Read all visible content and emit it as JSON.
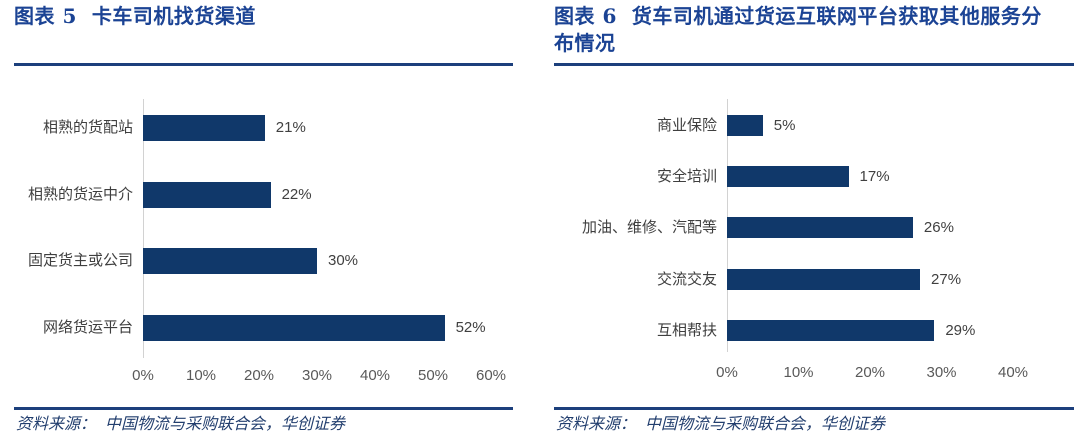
{
  "colors": {
    "title_blue": "#1b4394",
    "rule_blue": "#1c3f7c",
    "bar_navy": "#10386a",
    "axis_gray": "#d2d2d2",
    "category_label_gray": "#3f3f3f",
    "value_label_gray": "#404040",
    "tick_gray": "#595959",
    "source_blue": "#223e6e",
    "background": "#ffffff"
  },
  "figures": [
    {
      "label": "图表 5",
      "title": "卡车司机找货渠道",
      "source_prefix": "资料来源：",
      "source_text": "中国物流与采购联合会，华创证券"
    },
    {
      "label": "图表 6",
      "title": "货车司机通过货运互联网平台获取其他服务分布情况",
      "source_prefix": "资料来源：",
      "source_text": "中国物流与采购联合会，华创证券"
    }
  ],
  "chart_data": [
    {
      "type": "bar",
      "orientation": "horizontal",
      "title": "图表 5 卡车司机找货渠道",
      "categories": [
        "相熟的货配站",
        "相熟的货运中介",
        "固定货主或公司",
        "网络货运平台"
      ],
      "values": [
        21,
        22,
        30,
        52
      ],
      "value_labels": [
        "21%",
        "22%",
        "30%",
        "52%"
      ],
      "x_ticks": [
        0,
        10,
        20,
        30,
        40,
        50,
        60
      ],
      "x_tick_labels": [
        "0%",
        "10%",
        "20%",
        "30%",
        "40%",
        "50%",
        "60%"
      ],
      "xlim": [
        0,
        60
      ],
      "xlabel": "",
      "ylabel": "",
      "grid": false,
      "legend": false,
      "bar_color": "#10386a"
    },
    {
      "type": "bar",
      "orientation": "horizontal",
      "title": "图表 6 货车司机通过货运互联网平台获取其他服务分布情况",
      "categories": [
        "商业保险",
        "安全培训",
        "加油、维修、汽配等",
        "交流交友",
        "互相帮扶"
      ],
      "values": [
        5,
        17,
        26,
        27,
        29
      ],
      "value_labels": [
        "5%",
        "17%",
        "26%",
        "27%",
        "29%"
      ],
      "x_ticks": [
        0,
        10,
        20,
        30,
        40
      ],
      "x_tick_labels": [
        "0%",
        "10%",
        "20%",
        "30%",
        "40%"
      ],
      "xlim": [
        0,
        40
      ],
      "xlabel": "",
      "ylabel": "",
      "grid": false,
      "legend": false,
      "bar_color": "#10386a"
    }
  ]
}
